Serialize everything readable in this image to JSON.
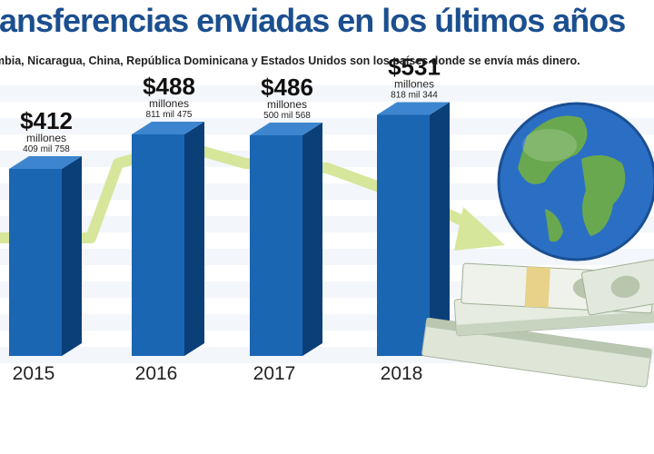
{
  "header": {
    "title": "ransferencias enviadas en los últimos años",
    "subtitle": "mbia, Nicaragua, China, República Dominicana y Estados Unidos son los países donde se envía más dinero."
  },
  "chart_data": {
    "type": "bar",
    "title": "ransferencias enviadas en los últimos años",
    "categories": [
      "2015",
      "2016",
      "2017",
      "2018"
    ],
    "values": [
      412,
      488,
      486,
      531
    ],
    "value_labels": [
      "$412",
      "$488",
      "$486",
      "$531"
    ],
    "unit_label": "millones",
    "detail_labels": [
      "409 mil 758",
      "811 mil 475",
      "500 mil 568",
      "818 mil 344"
    ],
    "ylim": [
      0,
      600
    ],
    "colors": {
      "bar_front": "#1a66b3",
      "bar_side": "#0b3f78",
      "bar_top": "#3d86cf",
      "trend_arrow": "#d6e69a",
      "title": "#1b4f8f"
    }
  }
}
